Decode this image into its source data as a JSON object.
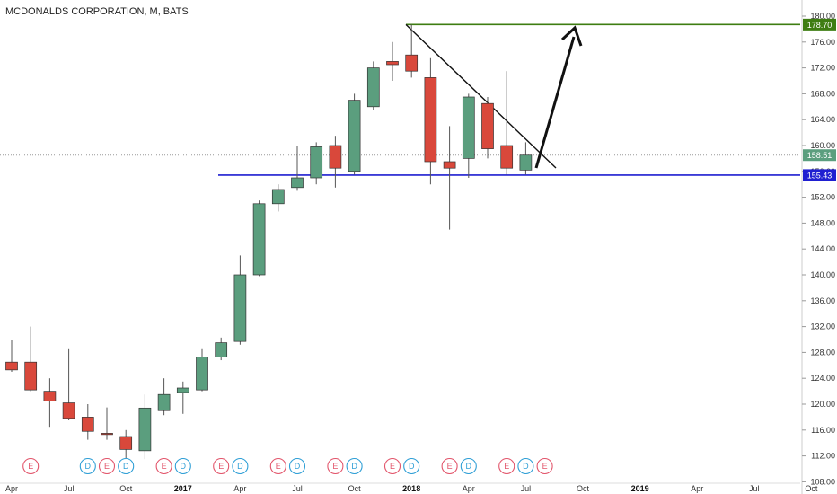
{
  "header": {
    "title": "MCDONALDS CORPORATION, M, BATS"
  },
  "colors": {
    "up": "#5b9e7e",
    "down": "#d9483b",
    "wick": "#555555",
    "support": "#1f1fd1",
    "resistance": "#3e7d12",
    "arrow": "#111111",
    "last_price": "#5b9e7e",
    "earnings": "#e2556b",
    "dividend": "#2f9fd6"
  },
  "chart_data": {
    "type": "candlestick",
    "interval": "monthly",
    "ylim": [
      106,
      181
    ],
    "y_ticks": [
      108,
      112,
      116,
      120,
      124,
      128,
      132,
      136,
      140,
      144,
      148,
      152,
      156,
      160,
      164,
      168,
      172,
      176,
      180
    ],
    "y_tick_labels": [
      "108.00",
      "112.00",
      "116.00",
      "120.00",
      "124.00",
      "128.00",
      "132.00",
      "136.00",
      "140.00",
      "144.00",
      "148.00",
      "152.00",
      "156.00",
      "160.00",
      "164.00",
      "168.00",
      "172.00",
      "176.00",
      "180.00"
    ],
    "x_ticks": [
      {
        "label": "Apr",
        "month": 0,
        "bold": false
      },
      {
        "label": "Jul",
        "month": 3,
        "bold": false
      },
      {
        "label": "Oct",
        "month": 6,
        "bold": false
      },
      {
        "label": "2017",
        "month": 9,
        "bold": true
      },
      {
        "label": "Apr",
        "month": 12,
        "bold": false
      },
      {
        "label": "Jul",
        "month": 15,
        "bold": false
      },
      {
        "label": "Oct",
        "month": 18,
        "bold": false
      },
      {
        "label": "2018",
        "month": 21,
        "bold": true
      },
      {
        "label": "Apr",
        "month": 24,
        "bold": false
      },
      {
        "label": "Jul",
        "month": 27,
        "bold": false
      },
      {
        "label": "Oct",
        "month": 30,
        "bold": false
      },
      {
        "label": "2019",
        "month": 33,
        "bold": true
      },
      {
        "label": "Apr",
        "month": 36,
        "bold": false
      },
      {
        "label": "Jul",
        "month": 39,
        "bold": false
      },
      {
        "label": "Oct",
        "month": 42,
        "bold": false
      }
    ],
    "candles": [
      {
        "date": "2016-04",
        "open": 126.5,
        "high": 130.0,
        "low": 125.0,
        "close": 125.3
      },
      {
        "date": "2016-05",
        "open": 126.5,
        "high": 132.0,
        "low": 122.0,
        "close": 122.2
      },
      {
        "date": "2016-06",
        "open": 122.0,
        "high": 124.0,
        "low": 116.5,
        "close": 120.5
      },
      {
        "date": "2016-07",
        "open": 120.2,
        "high": 128.5,
        "low": 117.5,
        "close": 117.8
      },
      {
        "date": "2016-08",
        "open": 118.0,
        "high": 120.0,
        "low": 114.5,
        "close": 115.8
      },
      {
        "date": "2016-09",
        "open": 115.5,
        "high": 119.5,
        "low": 114.5,
        "close": 115.3
      },
      {
        "date": "2016-10",
        "open": 115.0,
        "high": 116.0,
        "low": 110.8,
        "close": 113.0
      },
      {
        "date": "2016-11",
        "open": 112.8,
        "high": 121.5,
        "low": 111.5,
        "close": 119.4
      },
      {
        "date": "2016-12",
        "open": 119.0,
        "high": 124.0,
        "low": 118.3,
        "close": 121.5
      },
      {
        "date": "2017-01",
        "open": 121.8,
        "high": 123.5,
        "low": 118.5,
        "close": 122.5
      },
      {
        "date": "2017-02",
        "open": 122.2,
        "high": 128.5,
        "low": 122.0,
        "close": 127.3
      },
      {
        "date": "2017-03",
        "open": 127.3,
        "high": 130.3,
        "low": 126.8,
        "close": 129.5
      },
      {
        "date": "2017-04",
        "open": 129.7,
        "high": 143.0,
        "low": 129.2,
        "close": 140.0
      },
      {
        "date": "2017-05",
        "open": 140.0,
        "high": 151.5,
        "low": 139.8,
        "close": 151.0
      },
      {
        "date": "2017-06",
        "open": 151.0,
        "high": 154.0,
        "low": 149.8,
        "close": 153.2
      },
      {
        "date": "2017-07",
        "open": 153.5,
        "high": 160.0,
        "low": 153.0,
        "close": 155.0
      },
      {
        "date": "2017-08",
        "open": 155.0,
        "high": 160.5,
        "low": 154.0,
        "close": 159.8
      },
      {
        "date": "2017-09",
        "open": 160.0,
        "high": 161.5,
        "low": 153.5,
        "close": 156.5
      },
      {
        "date": "2017-10",
        "open": 156.0,
        "high": 168.0,
        "low": 155.5,
        "close": 167.0
      },
      {
        "date": "2017-11",
        "open": 166.0,
        "high": 173.0,
        "low": 165.5,
        "close": 172.0
      },
      {
        "date": "2017-12",
        "open": 173.0,
        "high": 176.0,
        "low": 170.0,
        "close": 172.5
      },
      {
        "date": "2018-01",
        "open": 174.0,
        "high": 178.7,
        "low": 170.5,
        "close": 171.5
      },
      {
        "date": "2018-02",
        "open": 170.5,
        "high": 173.5,
        "low": 154.0,
        "close": 157.5
      },
      {
        "date": "2018-03",
        "open": 157.5,
        "high": 163.0,
        "low": 147.0,
        "close": 156.5
      },
      {
        "date": "2018-04",
        "open": 158.0,
        "high": 168.0,
        "low": 155.0,
        "close": 167.5
      },
      {
        "date": "2018-05",
        "open": 166.5,
        "high": 167.5,
        "low": 158.0,
        "close": 159.5
      },
      {
        "date": "2018-06",
        "open": 160.0,
        "high": 171.5,
        "low": 155.5,
        "close": 156.5
      },
      {
        "date": "2018-07",
        "open": 156.2,
        "high": 160.5,
        "low": 155.5,
        "close": 158.51
      }
    ],
    "lines": {
      "support": 155.43,
      "resistance": 178.7,
      "last_close": 158.51
    },
    "price_tags": {
      "resistance": "178.70",
      "last_close": "158.51",
      "support": "155.43"
    },
    "events": [
      {
        "type": "E",
        "month": 1
      },
      {
        "type": "D",
        "month": 4
      },
      {
        "type": "E",
        "month": 5
      },
      {
        "type": "D",
        "month": 6
      },
      {
        "type": "E",
        "month": 8
      },
      {
        "type": "D",
        "month": 9
      },
      {
        "type": "E",
        "month": 11
      },
      {
        "type": "D",
        "month": 12
      },
      {
        "type": "E",
        "month": 14
      },
      {
        "type": "D",
        "month": 15
      },
      {
        "type": "E",
        "month": 17
      },
      {
        "type": "D",
        "month": 18
      },
      {
        "type": "E",
        "month": 20
      },
      {
        "type": "D",
        "month": 21
      },
      {
        "type": "E",
        "month": 23
      },
      {
        "type": "D",
        "month": 24
      },
      {
        "type": "E",
        "month": 26
      },
      {
        "type": "D",
        "month": 27
      },
      {
        "type": "E",
        "month": 28
      }
    ]
  }
}
